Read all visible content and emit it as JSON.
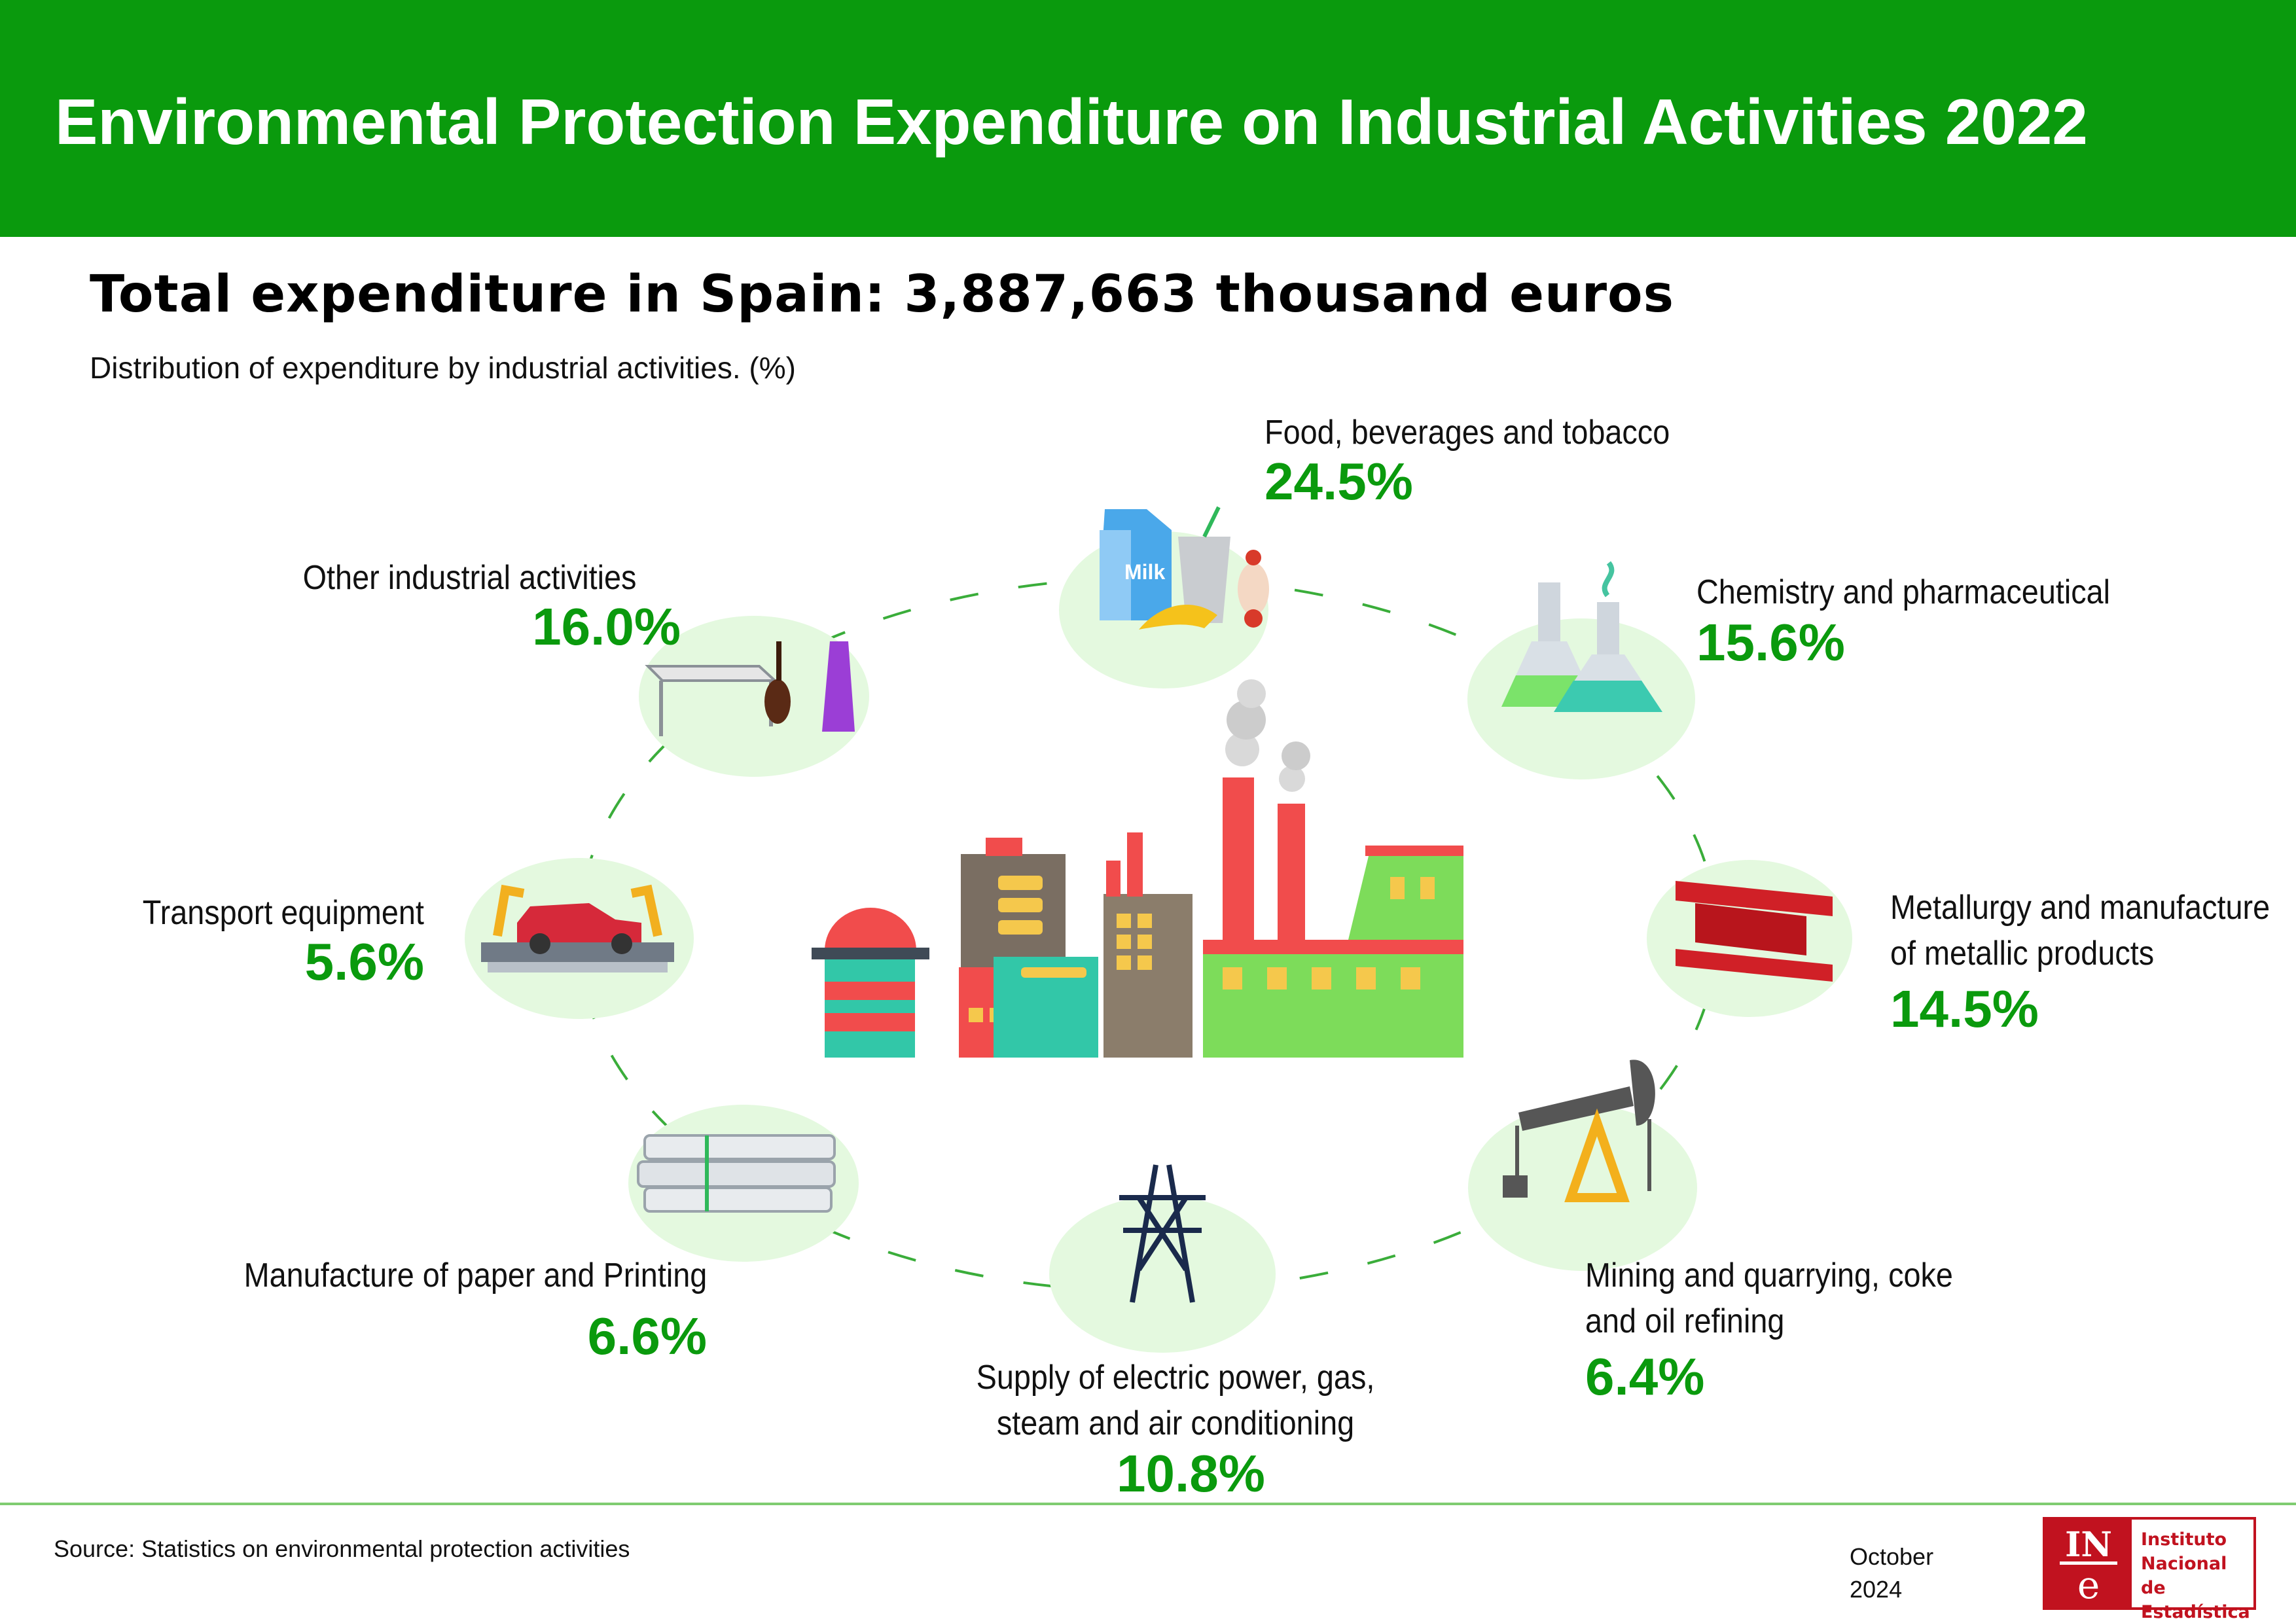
{
  "header": {
    "title": "Environmental Protection Expenditure on Industrial Activities 2022",
    "total": "Total expenditure in Spain: 3,887,663 thousand euros",
    "subtitle": "Distribution of expenditure by industrial activities. (%)"
  },
  "sectors": [
    {
      "label": "Food, beverages and tobacco",
      "value": "24.5%"
    },
    {
      "label": "Chemistry and pharmaceutical",
      "value": "15.6%"
    },
    {
      "label_lines": [
        "Metallurgy and manufacture",
        "of metallic products"
      ],
      "value": "14.5%"
    },
    {
      "label_lines": [
        "Mining and quarrying, coke",
        "and oil refining"
      ],
      "value": "6.4%"
    },
    {
      "label_lines": [
        "Supply of electric power, gas,",
        "steam and air conditioning"
      ],
      "value": "10.8%"
    },
    {
      "label": "Manufacture of paper and Printing",
      "value": "6.6%"
    },
    {
      "label": "Transport equipment",
      "value": "5.6%"
    },
    {
      "label": "Other industrial activities",
      "value": "16.0%"
    }
  ],
  "footer": {
    "source": "Source: Statistics on environmental protection activities",
    "date_month": "October",
    "date_year": "2024"
  },
  "logo": {
    "mark": "INE",
    "line1": "Instituto",
    "line2": "Nacional de",
    "line3": "Estadística"
  },
  "icons": {
    "food": "milk-carton-cup-apple-banana-icon",
    "chemistry": "lab-flasks-icon",
    "metallurgy": "steel-beam-icon",
    "mining": "oil-pump-jack-icon",
    "energy": "electricity-pylon-icon",
    "paper": "paper-stack-icon",
    "transport": "car-assembly-line-icon",
    "other": "table-violin-dress-icon",
    "center": "factory-icon"
  },
  "colors": {
    "brand_green": "#0a9a0d",
    "circle_bg": "#e4f9df",
    "dash": "#3aad3a",
    "ine_red": "#c1121f"
  }
}
